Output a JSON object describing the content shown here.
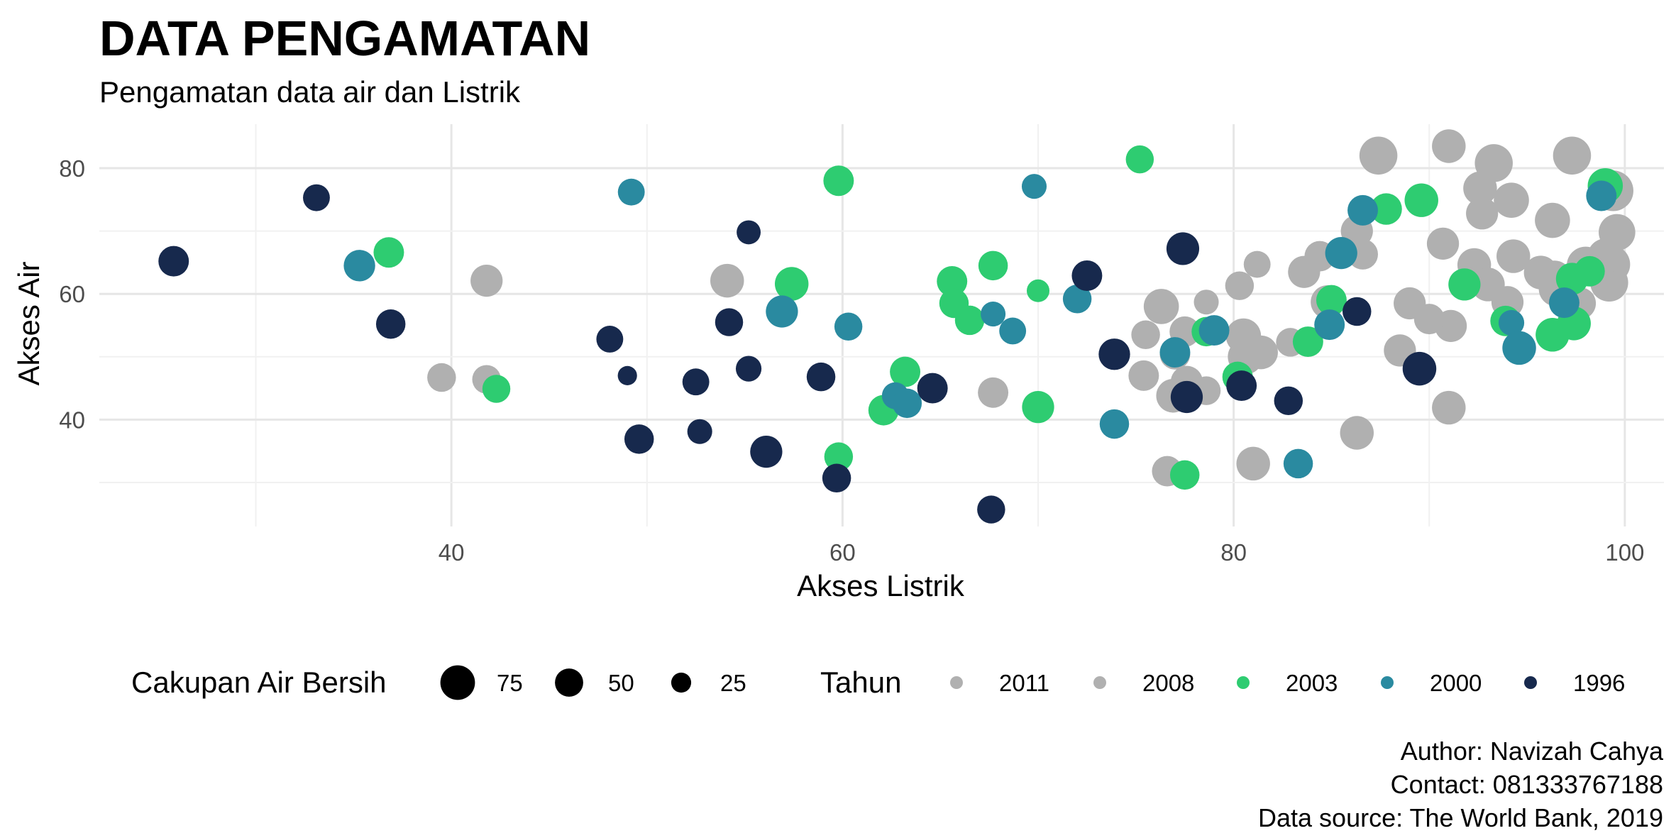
{
  "title": "DATA PENGAMATAN",
  "subtitle": "Pengamatan data air dan Listrik",
  "caption": {
    "author": "Author: Navizah Cahya",
    "contact": "Contact: 081333767188",
    "source": "Data source: The World Bank, 2019"
  },
  "colors": {
    "2011": "#b0b0b0",
    "2008": "#b0b0b0",
    "2003": "#2ecc71",
    "2000": "#2a8aa0",
    "1996": "#17294d",
    "grid_major": "#e6e6e6",
    "grid_minor": "#f1f1f1"
  },
  "chart_data": {
    "type": "scatter",
    "xlabel": "Akses Listrik",
    "ylabel": "Akses Air",
    "xlim": [
      22,
      102
    ],
    "ylim": [
      23,
      87
    ],
    "x_ticks": [
      40,
      60,
      80,
      100
    ],
    "y_ticks": [
      40,
      60,
      80
    ],
    "grid": true,
    "legend_position": "bottom",
    "size_legend": {
      "title": "Cakupan Air Bersih",
      "values": [
        75,
        50,
        25
      ]
    },
    "color_legend": {
      "title": "Tahun",
      "entries": [
        "2011",
        "2008",
        "2003",
        "2000",
        "1996"
      ]
    },
    "series": [
      {
        "name": "2011",
        "points": [
          [
            87.4,
            82.0,
            70
          ],
          [
            91.0,
            83.5,
            55
          ],
          [
            93.3,
            80.8,
            70
          ],
          [
            97.3,
            82.0,
            70
          ],
          [
            92.6,
            76.8,
            55
          ],
          [
            94.2,
            74.9,
            60
          ],
          [
            92.7,
            72.8,
            50
          ],
          [
            96.3,
            71.7,
            60
          ],
          [
            99.4,
            76.4,
            80
          ],
          [
            99.6,
            69.8,
            65
          ],
          [
            90.7,
            68.0,
            50
          ],
          [
            92.3,
            64.6,
            55
          ],
          [
            94.3,
            66.0,
            55
          ],
          [
            95.7,
            63.4,
            55
          ],
          [
            98.0,
            64.5,
            70
          ],
          [
            99.3,
            64.7,
            70
          ],
          [
            99.2,
            61.8,
            70
          ],
          [
            96.5,
            60.8,
            60
          ],
          [
            94.0,
            58.7,
            50
          ],
          [
            97.7,
            58.5,
            50
          ],
          [
            91.1,
            54.9,
            50
          ],
          [
            88.5,
            51.0,
            50
          ],
          [
            86.3,
            70.0,
            50
          ],
          [
            86.6,
            66.3,
            45
          ],
          [
            84.4,
            66.0,
            45
          ],
          [
            83.6,
            63.5,
            50
          ],
          [
            81.2,
            64.7,
            35
          ],
          [
            80.3,
            61.3,
            40
          ],
          [
            84.8,
            58.7,
            55
          ],
          [
            80.5,
            53.3,
            60
          ],
          [
            80.6,
            50.0,
            60
          ],
          [
            78.6,
            58.7,
            30
          ],
          [
            77.5,
            54.0,
            45
          ],
          [
            77.0,
            50.4,
            45
          ],
          [
            75.5,
            53.5,
            40
          ],
          [
            75.4,
            47.0,
            45
          ],
          [
            76.9,
            43.8,
            55
          ],
          [
            78.6,
            44.6,
            40
          ],
          [
            81.0,
            33.0,
            55
          ],
          [
            86.3,
            37.9,
            55
          ],
          [
            91.0,
            41.9,
            55
          ],
          [
            76.6,
            31.8,
            45
          ],
          [
            67.7,
            44.3,
            45
          ],
          [
            54.1,
            62.1,
            55
          ],
          [
            41.8,
            62.1,
            50
          ],
          [
            39.5,
            46.7,
            40
          ],
          [
            41.8,
            46.4,
            40
          ],
          [
            82.9,
            52.3,
            40
          ],
          [
            89.0,
            58.5,
            50
          ],
          [
            90.0,
            56.0,
            45
          ],
          [
            99.0,
            66.0,
            60
          ]
        ]
      },
      {
        "name": "2008",
        "points": [
          [
            76.3,
            58.0,
            60
          ],
          [
            77.6,
            46.0,
            50
          ],
          [
            81.4,
            50.7,
            55
          ],
          [
            96.4,
            62.5,
            60
          ],
          [
            93.0,
            61.5,
            55
          ]
        ]
      },
      {
        "name": "2003",
        "points": [
          [
            75.2,
            81.4,
            38
          ],
          [
            59.8,
            78.0,
            45
          ],
          [
            99.0,
            77.2,
            60
          ],
          [
            89.6,
            74.9,
            55
          ],
          [
            87.8,
            73.5,
            48
          ],
          [
            36.8,
            66.6,
            45
          ],
          [
            57.4,
            61.6,
            55
          ],
          [
            67.7,
            64.5,
            42
          ],
          [
            65.6,
            62.0,
            45
          ],
          [
            65.7,
            58.5,
            42
          ],
          [
            66.5,
            55.8,
            42
          ],
          [
            70.0,
            60.5,
            25
          ],
          [
            91.8,
            61.5,
            50
          ],
          [
            93.9,
            55.7,
            45
          ],
          [
            96.3,
            53.5,
            55
          ],
          [
            97.4,
            55.3,
            55
          ],
          [
            97.3,
            62.4,
            50
          ],
          [
            98.2,
            63.6,
            45
          ],
          [
            85.0,
            59.0,
            45
          ],
          [
            83.8,
            52.4,
            45
          ],
          [
            80.2,
            46.8,
            45
          ],
          [
            78.6,
            54.0,
            42
          ],
          [
            63.2,
            47.6,
            45
          ],
          [
            62.1,
            41.5,
            45
          ],
          [
            70.0,
            42.0,
            50
          ],
          [
            59.8,
            34.1,
            40
          ],
          [
            77.5,
            31.2,
            42
          ],
          [
            42.3,
            44.9,
            38
          ]
        ]
      },
      {
        "name": "2000",
        "points": [
          [
            49.2,
            76.2,
            35
          ],
          [
            69.8,
            77.1,
            30
          ],
          [
            86.6,
            73.3,
            45
          ],
          [
            85.5,
            66.5,
            50
          ],
          [
            35.3,
            64.5,
            48
          ],
          [
            56.9,
            57.2,
            50
          ],
          [
            60.3,
            54.8,
            38
          ],
          [
            67.7,
            56.8,
            30
          ],
          [
            68.7,
            54.1,
            35
          ],
          [
            72.0,
            59.2,
            40
          ],
          [
            79.0,
            54.2,
            45
          ],
          [
            77.0,
            50.7,
            45
          ],
          [
            84.9,
            55.1,
            45
          ],
          [
            94.2,
            55.4,
            32
          ],
          [
            94.6,
            51.4,
            55
          ],
          [
            62.7,
            43.8,
            35
          ],
          [
            63.3,
            42.6,
            42
          ],
          [
            73.9,
            39.3,
            42
          ],
          [
            83.3,
            33.0,
            42
          ],
          [
            96.9,
            58.6,
            45
          ],
          [
            98.8,
            75.6,
            45
          ]
        ]
      },
      {
        "name": "1996",
        "points": [
          [
            25.8,
            65.2,
            45
          ],
          [
            33.1,
            75.3,
            35
          ],
          [
            36.9,
            55.2,
            42
          ],
          [
            48.1,
            52.8,
            35
          ],
          [
            49.0,
            47.0,
            18
          ],
          [
            49.6,
            36.9,
            42
          ],
          [
            52.5,
            46.0,
            35
          ],
          [
            52.7,
            38.1,
            30
          ],
          [
            54.2,
            55.5,
            38
          ],
          [
            55.2,
            69.8,
            28
          ],
          [
            55.2,
            48.1,
            32
          ],
          [
            56.1,
            34.9,
            50
          ],
          [
            58.9,
            46.8,
            40
          ],
          [
            59.7,
            30.7,
            40
          ],
          [
            64.6,
            45.0,
            45
          ],
          [
            67.6,
            25.7,
            38
          ],
          [
            72.5,
            62.9,
            45
          ],
          [
            73.9,
            50.4,
            48
          ],
          [
            77.4,
            67.2,
            52
          ],
          [
            77.6,
            43.6,
            50
          ],
          [
            80.4,
            45.4,
            45
          ],
          [
            82.8,
            43.0,
            40
          ],
          [
            86.3,
            57.2,
            40
          ],
          [
            89.5,
            48.1,
            55
          ]
        ]
      }
    ]
  }
}
